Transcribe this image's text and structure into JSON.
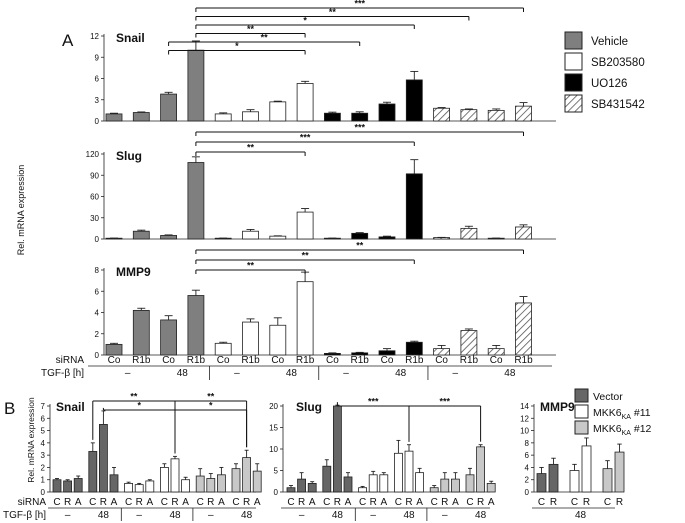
{
  "panel_a": {
    "label": "A",
    "ylabel": "Rel. mRNA expression",
    "legend": [
      {
        "label": "Vehicle",
        "fill": "gray"
      },
      {
        "label": "SB203580",
        "fill": "white"
      },
      {
        "label": "UO126",
        "fill": "black"
      },
      {
        "label": "SB431542",
        "fill": "hatch"
      }
    ],
    "row_labels": {
      "sirna": "siRNA",
      "tgf": "TGF-β [h]"
    },
    "sirna_labels": [
      "Co",
      "R1b",
      "Co",
      "R1b",
      "Co",
      "R1b",
      "Co",
      "R1b",
      "Co",
      "R1b",
      "Co",
      "R1b",
      "Co",
      "R1b",
      "Co",
      "R1b"
    ],
    "tgf_labels": [
      "–",
      "48",
      "–",
      "48",
      "–",
      "48",
      "–",
      "48"
    ]
  },
  "panel_b": {
    "label": "B",
    "ylabel": "Rel. mRNA expression",
    "legend": [
      {
        "label": "Vector",
        "fill": "dark"
      },
      {
        "label": "MKK6",
        "sub": "KA",
        "suffix": " #11",
        "fill": "white"
      },
      {
        "label": "MKK6",
        "sub": "KA",
        "suffix": " #12",
        "fill": "light"
      }
    ],
    "row_labels": {
      "sirna": "siRNA",
      "tgf": "TGF-β [h]"
    },
    "sirna_labels_full": [
      "C",
      "R",
      "A",
      "C",
      "R",
      "A",
      "C",
      "R",
      "A",
      "C",
      "R",
      "A",
      "C",
      "R",
      "A",
      "C",
      "R",
      "A"
    ],
    "sirna_labels_mmp9": [
      "C",
      "R",
      "C",
      "R",
      "C",
      "R"
    ],
    "tgf_labels_full": [
      "–",
      "48",
      "–",
      "48",
      "–",
      "48"
    ],
    "tgf_label_mmp9": "48"
  },
  "chart_data": [
    {
      "type": "bar",
      "title": "Snail",
      "ylabel": "Rel. mRNA expression",
      "yticks": [
        0,
        3,
        6,
        9,
        12
      ],
      "ylim": [
        0,
        12
      ],
      "categories": [
        "Co",
        "R1b",
        "Co",
        "R1b",
        "Co",
        "R1b",
        "Co",
        "R1b",
        "Co",
        "R1b",
        "Co",
        "R1b",
        "Co",
        "R1b",
        "Co",
        "R1b"
      ],
      "values": [
        1.0,
        1.2,
        3.8,
        10.0,
        1.0,
        1.3,
        2.7,
        5.3,
        1.1,
        1.1,
        2.4,
        5.8,
        1.8,
        1.6,
        1.5,
        2.1
      ],
      "errors": [
        0.1,
        0.08,
        0.25,
        1.3,
        0.15,
        0.3,
        0.1,
        0.3,
        0.15,
        0.2,
        0.25,
        1.2,
        0.1,
        0.1,
        0.2,
        0.5
      ],
      "fills": [
        "gray",
        "gray",
        "gray",
        "gray",
        "white",
        "white",
        "white",
        "white",
        "black",
        "black",
        "black",
        "black",
        "hatch",
        "hatch",
        "hatch",
        "hatch"
      ],
      "annotations": [
        {
          "from": 2,
          "to": 7,
          "label": "*"
        },
        {
          "from": 2,
          "to": 9,
          "label": "**"
        },
        {
          "from": 3,
          "to": 7,
          "label": "**"
        },
        {
          "from": 3,
          "to": 11,
          "label": "*"
        },
        {
          "from": 3,
          "to": 13,
          "label": "**"
        },
        {
          "from": 3,
          "to": 15,
          "label": "***"
        }
      ]
    },
    {
      "type": "bar",
      "title": "Slug",
      "ylabel": "Rel. mRNA expression",
      "yticks": [
        0,
        30,
        60,
        90,
        120
      ],
      "ylim": [
        0,
        120
      ],
      "categories": [
        "Co",
        "R1b",
        "Co",
        "R1b",
        "Co",
        "R1b",
        "Co",
        "R1b",
        "Co",
        "R1b",
        "Co",
        "R1b",
        "Co",
        "R1b",
        "Co",
        "R1b"
      ],
      "values": [
        1,
        11,
        5,
        108,
        1,
        11,
        4,
        38,
        1,
        8,
        3,
        92,
        2,
        15,
        1,
        17
      ],
      "errors": [
        0.3,
        1.5,
        0.8,
        8,
        0.3,
        2.5,
        0.5,
        5,
        0.3,
        1,
        1,
        20,
        0.3,
        3,
        0.3,
        3
      ],
      "fills": [
        "gray",
        "gray",
        "gray",
        "gray",
        "white",
        "white",
        "white",
        "white",
        "black",
        "black",
        "black",
        "black",
        "hatch",
        "hatch",
        "hatch",
        "hatch"
      ],
      "annotations": [
        {
          "from": 3,
          "to": 7,
          "label": "**"
        },
        {
          "from": 3,
          "to": 11,
          "label": "***"
        },
        {
          "from": 3,
          "to": 15,
          "label": "***"
        }
      ]
    },
    {
      "type": "bar",
      "title": "MMP9",
      "ylabel": "Rel. mRNA expression",
      "yticks": [
        0,
        2,
        4,
        6,
        8
      ],
      "ylim": [
        0,
        8
      ],
      "categories": [
        "Co",
        "R1b",
        "Co",
        "R1b",
        "Co",
        "R1b",
        "Co",
        "R1b",
        "Co",
        "R1b",
        "Co",
        "R1b",
        "Co",
        "R1b",
        "Co",
        "R1b"
      ],
      "values": [
        1.0,
        4.2,
        3.3,
        5.6,
        1.1,
        3.1,
        2.8,
        6.9,
        0.15,
        0.2,
        0.4,
        1.2,
        0.6,
        2.3,
        0.6,
        4.9
      ],
      "errors": [
        0.1,
        0.2,
        0.4,
        0.5,
        0.1,
        0.3,
        0.7,
        0.9,
        0.05,
        0.05,
        0.2,
        0.1,
        0.3,
        0.15,
        0.3,
        0.6
      ],
      "fills": [
        "gray",
        "gray",
        "gray",
        "gray",
        "white",
        "white",
        "white",
        "white",
        "black",
        "black",
        "black",
        "black",
        "hatch",
        "hatch",
        "hatch",
        "hatch"
      ],
      "annotations": [
        {
          "from": 3,
          "to": 7,
          "label": "**"
        },
        {
          "from": 3,
          "to": 11,
          "label": "**"
        },
        {
          "from": 3,
          "to": 15,
          "label": "**"
        }
      ]
    },
    {
      "type": "bar",
      "title": "Snail",
      "ylabel": "Rel. mRNA expression",
      "yticks": [
        0,
        1,
        2,
        3,
        4,
        5,
        6,
        7
      ],
      "ylim": [
        0,
        7
      ],
      "categories": [
        "C",
        "R",
        "A",
        "C",
        "R",
        "A",
        "C",
        "R",
        "A",
        "C",
        "R",
        "A",
        "C",
        "R",
        "A",
        "C",
        "R",
        "A"
      ],
      "values": [
        1.0,
        0.9,
        1.1,
        3.3,
        5.5,
        1.4,
        0.7,
        0.6,
        0.9,
        2.0,
        2.7,
        1.0,
        1.3,
        1.1,
        1.4,
        1.9,
        2.8,
        1.7
      ],
      "errors": [
        0.1,
        0.1,
        0.2,
        0.7,
        1.1,
        0.6,
        0.1,
        0.1,
        0.1,
        0.3,
        0.2,
        0.2,
        0.6,
        0.4,
        0.6,
        0.4,
        0.6,
        0.6
      ],
      "fills": [
        "dark",
        "dark",
        "dark",
        "dark",
        "dark",
        "dark",
        "white",
        "white",
        "white",
        "white",
        "white",
        "white",
        "light",
        "light",
        "light",
        "light",
        "light",
        "light"
      ],
      "annotations": [
        {
          "from": 3,
          "to": 10,
          "label": "**",
          "level": 0
        },
        {
          "from": 10,
          "to": 16,
          "label": "**",
          "level": 0
        },
        {
          "from": 4,
          "to": 10,
          "label": "*",
          "level": 1
        },
        {
          "from": 10,
          "to": 16,
          "label": "*",
          "level": 1
        }
      ]
    },
    {
      "type": "bar",
      "title": "Slug",
      "yticks": [
        0,
        5,
        10,
        15,
        20
      ],
      "ylim": [
        0,
        20
      ],
      "categories": [
        "C",
        "R",
        "A",
        "C",
        "R",
        "A",
        "C",
        "R",
        "A",
        "C",
        "R",
        "A",
        "C",
        "R",
        "A",
        "C",
        "R",
        "A"
      ],
      "values": [
        1.0,
        3.0,
        2.0,
        6.0,
        20.0,
        3.5,
        1.0,
        4.0,
        4.0,
        9.0,
        9.5,
        4.5,
        1.0,
        3.0,
        3.0,
        4.0,
        10.5,
        2.0
      ],
      "errors": [
        0.5,
        1.5,
        0.4,
        1.5,
        0.2,
        1.0,
        0.3,
        0.8,
        0.5,
        3.0,
        1.5,
        1.0,
        0.5,
        1.5,
        1.5,
        1.5,
        0.5,
        0.5
      ],
      "fills": [
        "dark",
        "dark",
        "dark",
        "dark",
        "dark",
        "dark",
        "white",
        "white",
        "white",
        "white",
        "white",
        "white",
        "light",
        "light",
        "light",
        "light",
        "light",
        "light"
      ],
      "annotations": [
        {
          "from": 4,
          "to": 10,
          "label": "***",
          "level": 0
        },
        {
          "from": 10,
          "to": 16,
          "label": "***",
          "level": 0
        }
      ]
    },
    {
      "type": "bar",
      "title": "MMP9",
      "yticks": [
        0,
        2,
        4,
        6,
        8,
        10,
        12,
        14
      ],
      "ylim": [
        0,
        14
      ],
      "categories": [
        "C",
        "R",
        "C",
        "R",
        "C",
        "R"
      ],
      "values": [
        3.0,
        4.5,
        3.5,
        7.5,
        3.8,
        6.5
      ],
      "errors": [
        1.0,
        1.0,
        1.0,
        1.3,
        1.3,
        1.3
      ],
      "fills": [
        "dark",
        "dark",
        "white",
        "white",
        "light",
        "light"
      ],
      "annotations": []
    }
  ]
}
